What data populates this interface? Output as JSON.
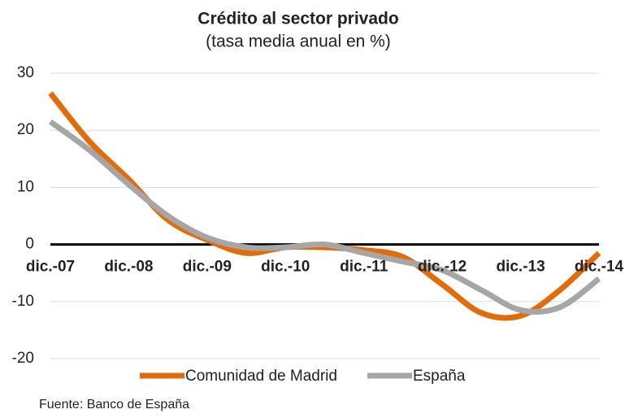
{
  "chart_data": {
    "type": "line",
    "title": "Crédito al sector privado",
    "subtitle": "(tasa media anual en %)",
    "categories": [
      "dic.-07",
      null,
      "dic.-08",
      null,
      "dic.-09",
      null,
      "dic.-10",
      null,
      "dic.-11",
      null,
      "dic.-12",
      null,
      "dic.-13",
      null,
      "dic.-14"
    ],
    "series": [
      {
        "name": "Comunidad de Madrid",
        "color": "#e36c0a",
        "values": [
          26.5,
          18,
          11.4,
          4.3,
          0.8,
          -1.5,
          -0.5,
          -0.5,
          -1,
          -2.2,
          -7,
          -12,
          -12.5,
          -8,
          -1.5
        ]
      },
      {
        "name": "España",
        "color": "#a6a6a6",
        "values": [
          21.5,
          16.5,
          10.5,
          5,
          1.2,
          -0.5,
          -0.5,
          0,
          -1.5,
          -3,
          -4.5,
          -8,
          -11.5,
          -11,
          -6
        ]
      }
    ],
    "ylim": [
      -20,
      30
    ],
    "yticks": [
      -20,
      -10,
      0,
      10,
      20,
      30
    ],
    "grid": true,
    "legend": "bottom",
    "source": "Fuente: Banco de España"
  }
}
